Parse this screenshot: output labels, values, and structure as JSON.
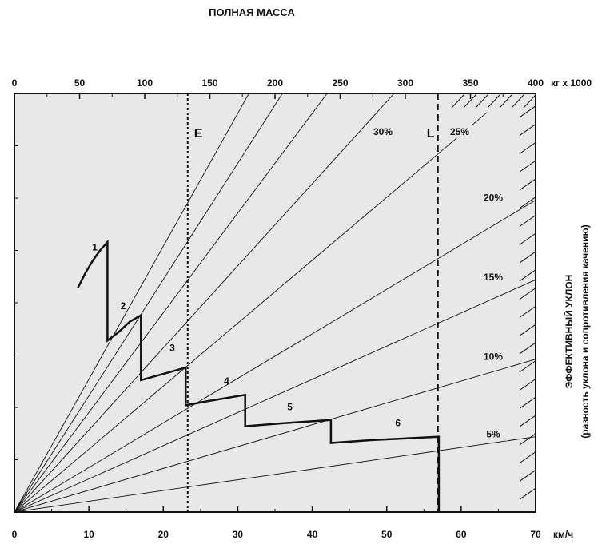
{
  "chart_data": {
    "type": "line",
    "title": "ПОЛНАЯ МАССА",
    "top_axis": {
      "unit": "кг x 1000",
      "ticks": [
        0,
        50,
        100,
        150,
        200,
        250,
        300,
        350,
        400
      ],
      "range": [
        0,
        400
      ]
    },
    "x_axis": {
      "unit": "км/ч",
      "ticks": [
        0,
        10,
        20,
        30,
        40,
        50,
        60,
        70
      ],
      "range": [
        0,
        70
      ]
    },
    "right_label": {
      "line1": "ЭФФЕКТИВНЫЙ УКЛОН",
      "line2": "(разность уклона и сопротивления качению)"
    },
    "grade_lines": [
      {
        "label": "5%",
        "end": [
          70,
          0.18
        ]
      },
      {
        "label": "10%",
        "end": [
          70,
          0.365
        ]
      },
      {
        "label": "15%",
        "end": [
          70,
          0.555
        ]
      },
      {
        "label": "20%",
        "end": [
          70,
          0.745
        ]
      },
      {
        "label": "25%",
        "end": [
          63.5,
          0.955
        ]
      },
      {
        "label": "30%",
        "end": [
          51,
          1.0
        ]
      },
      {
        "label": "",
        "end": [
          42,
          1.0
        ]
      },
      {
        "label": "",
        "end": [
          36,
          1.0
        ]
      },
      {
        "label": "",
        "end": [
          31.5,
          1.0
        ]
      }
    ],
    "markers": [
      {
        "label": "E",
        "value": 133,
        "style": "dotted"
      },
      {
        "label": "L",
        "value": 325,
        "style": "dashed"
      }
    ],
    "gear_labels": [
      "1",
      "2",
      "3",
      "4",
      "5",
      "6"
    ],
    "rimpull_curve": [
      [
        8.5,
        0.535
      ],
      [
        9.5,
        0.57
      ],
      [
        10.5,
        0.6
      ],
      [
        11.5,
        0.625
      ],
      [
        12.5,
        0.645
      ],
      [
        12.5,
        0.41
      ],
      [
        14,
        0.43
      ],
      [
        15.5,
        0.455
      ],
      [
        17,
        0.47
      ],
      [
        17,
        0.315
      ],
      [
        20,
        0.33
      ],
      [
        23,
        0.345
      ],
      [
        23,
        0.255
      ],
      [
        26,
        0.265
      ],
      [
        31,
        0.28
      ],
      [
        31,
        0.205
      ],
      [
        36,
        0.212
      ],
      [
        42.5,
        0.22
      ],
      [
        42.5,
        0.165
      ],
      [
        48,
        0.172
      ],
      [
        57,
        0.18
      ],
      [
        57,
        0.0
      ]
    ],
    "edge_ticks_count": 22,
    "grid": false
  }
}
